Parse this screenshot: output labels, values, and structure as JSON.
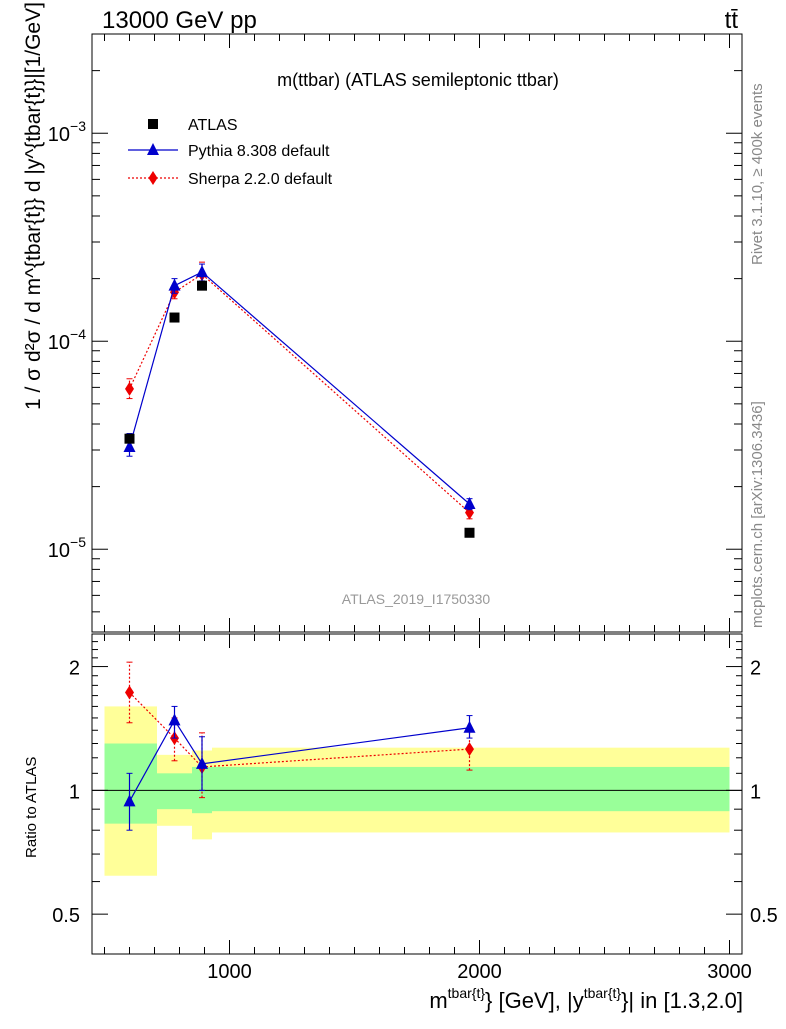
{
  "header": {
    "left": "13000 GeV pp",
    "right": "tt̄"
  },
  "side_labels": {
    "rivet": "Rivet 3.1.10, ≥ 400k events",
    "mcplots": "mcplots.cern.ch [arXiv:1306.3436]"
  },
  "chart_data": [
    {
      "type": "scatter",
      "title": "m(ttbar) (ATLAS semileptonic ttbar)",
      "watermark": "ATLAS_2019_I1750330",
      "ylabel": "1 / σ d²σ / d m^{tbar{t}} d |y^{tbar{t}}|[1/GeV]",
      "xlim": [
        450,
        3050
      ],
      "ylim": [
        4e-06,
        0.003
      ],
      "yscale": "log",
      "yticks": [
        {
          "value": 1e-05,
          "base": "10",
          "exp": "−5"
        },
        {
          "value": 0.0001,
          "base": "10",
          "exp": "−4"
        },
        {
          "value": 0.001,
          "base": "10",
          "exp": "−3"
        }
      ],
      "legend_position": "top-left",
      "series": [
        {
          "name": "ATLAS",
          "color": "#000000",
          "marker": "square",
          "x": [
            600,
            780,
            890,
            1960
          ],
          "y": [
            3.4e-05,
            0.00013,
            0.000185,
            1.2e-05
          ]
        },
        {
          "name": "Pythia 8.308 default",
          "color": "#0000cc",
          "marker": "triangle",
          "line": "solid",
          "x": [
            600,
            780,
            890,
            1960
          ],
          "y": [
            3.1e-05,
            0.000185,
            0.000215,
            1.65e-05
          ],
          "err_low": [
            2.8e-05,
            0.00017,
            0.000195,
            1.55e-05
          ],
          "err_high": [
            3.6e-05,
            0.0002,
            0.000235,
            1.75e-05
          ]
        },
        {
          "name": "Sherpa 2.2.0 default",
          "color": "#ee0000",
          "marker": "diamond",
          "line": "dotted",
          "x": [
            600,
            780,
            890,
            1960
          ],
          "y": [
            5.9e-05,
            0.000172,
            0.00021,
            1.5e-05
          ],
          "err_low": [
            5.3e-05,
            0.00016,
            0.000185,
            1.4e-05
          ],
          "err_high": [
            6.6e-05,
            0.000185,
            0.00024,
            1.6e-05
          ]
        }
      ]
    },
    {
      "type": "scatter",
      "ylabel": "Ratio to ATLAS",
      "xlabel_parts": {
        "m": "m",
        "sup1": "tbar{t}",
        "mid": "} [GeV], |y",
        "sup2": "tbar{t}",
        "end": "}| in [1.3,2.0]"
      },
      "xlim": [
        450,
        3050
      ],
      "ylim": [
        0.4,
        2.4
      ],
      "yscale": "log",
      "yticks": [
        {
          "value": 0.5,
          "label": "0.5"
        },
        {
          "value": 1,
          "label": "1"
        },
        {
          "value": 2,
          "label": "2"
        }
      ],
      "xticks": [
        {
          "value": 1000,
          "label": "1000"
        },
        {
          "value": 2000,
          "label": "2000"
        },
        {
          "value": 3000,
          "label": "3000"
        }
      ],
      "bands": [
        {
          "x0": 500,
          "x1": 710,
          "yellow": [
            0.62,
            1.6
          ],
          "green": [
            0.83,
            1.3
          ]
        },
        {
          "x0": 710,
          "x1": 850,
          "yellow": [
            0.82,
            1.22
          ],
          "green": [
            0.9,
            1.1
          ]
        },
        {
          "x0": 850,
          "x1": 930,
          "yellow": [
            0.76,
            1.25
          ],
          "green": [
            0.88,
            1.14
          ]
        },
        {
          "x0": 930,
          "x1": 3000,
          "yellow": [
            0.79,
            1.27
          ],
          "green": [
            0.89,
            1.14
          ]
        }
      ],
      "series": [
        {
          "name": "Pythia 8.308 default",
          "color": "#0000cc",
          "marker": "triangle",
          "line": "solid",
          "x": [
            600,
            780,
            890,
            1960
          ],
          "y": [
            0.94,
            1.48,
            1.16,
            1.42
          ],
          "err_low": [
            0.8,
            1.34,
            1.0,
            1.34
          ],
          "err_high": [
            1.1,
            1.6,
            1.35,
            1.52
          ]
        },
        {
          "name": "Sherpa 2.2.0 default",
          "color": "#ee0000",
          "marker": "diamond",
          "line": "dotted",
          "x": [
            600,
            780,
            890,
            1960
          ],
          "y": [
            1.73,
            1.34,
            1.14,
            1.26
          ],
          "err_low": [
            1.46,
            1.18,
            0.96,
            1.12
          ],
          "err_high": [
            2.05,
            1.5,
            1.38,
            1.4
          ]
        }
      ]
    }
  ]
}
